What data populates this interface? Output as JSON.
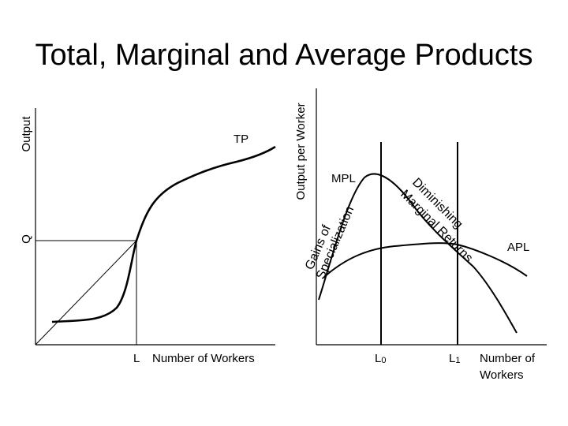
{
  "title": "Total, Marginal and Average Products",
  "left_chart": {
    "y_axis_label": "Output",
    "y_tick_label": "Q",
    "x_tick_label": "L",
    "x_axis_label": "Number of Workers",
    "curve_label": "TP"
  },
  "right_chart": {
    "y_axis_label": "Output per Worker",
    "x_tick_label_0_main": "L",
    "x_tick_label_0_sub": "0",
    "x_tick_label_1_main": "L",
    "x_tick_label_1_sub": "1",
    "x_axis_label_line1": "Number of",
    "x_axis_label_line2": "Workers",
    "mpl_label": "MPL",
    "apl_label": "APL",
    "gains_label_line1": "Gains of",
    "gains_label_line2": "Specialization",
    "diminishing_label_line1": "Diminishing",
    "diminishing_label_line2": "Marginal Returns"
  }
}
